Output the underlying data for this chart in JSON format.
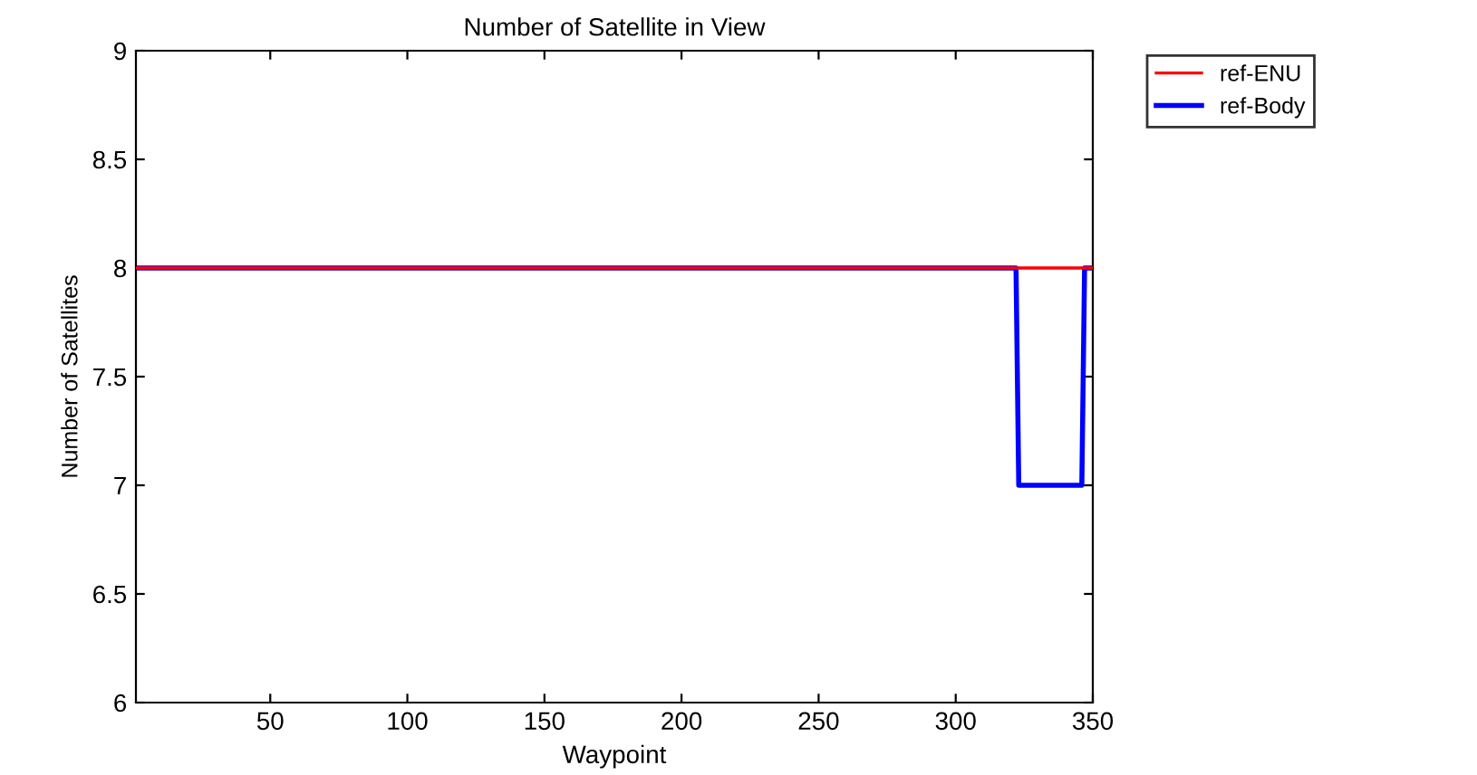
{
  "chart_data": {
    "type": "line",
    "title": "Number of Satellite in View",
    "xlabel": "Waypoint",
    "ylabel": "Number of Satellites",
    "series": [
      {
        "name": "ref-ENU",
        "color": "#ff0000",
        "x": [
          1,
          350
        ],
        "values": [
          8,
          8
        ]
      },
      {
        "name": "ref-Body",
        "color": "#0000ff",
        "x": [
          1,
          322,
          323,
          346,
          347,
          350
        ],
        "values": [
          8,
          8,
          7,
          7,
          8,
          8
        ]
      }
    ],
    "xlim": [
      1,
      350
    ],
    "ylim": [
      6,
      9
    ],
    "xticks": [
      50,
      100,
      150,
      200,
      250,
      300,
      350
    ],
    "yticks": [
      6,
      6.5,
      7,
      7.5,
      8,
      8.5,
      9
    ],
    "grid": false,
    "legend": "top right",
    "line_style": "solid",
    "marker": "none"
  }
}
